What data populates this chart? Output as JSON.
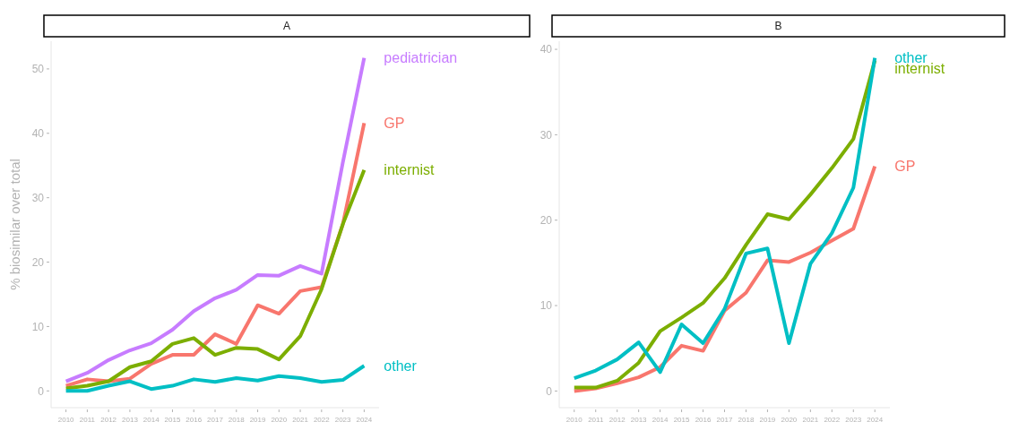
{
  "chart_data": [
    {
      "type": "line",
      "title": "A",
      "ylabel": "% biosimilar over total",
      "x": [
        2010,
        2011,
        2012,
        2013,
        2014,
        2015,
        2016,
        2017,
        2018,
        2019,
        2020,
        2021,
        2022,
        2023,
        2024
      ],
      "xlim": [
        2009.3,
        2024.7
      ],
      "xticks": [
        2010,
        2011,
        2012,
        2013,
        2014,
        2015,
        2016,
        2017,
        2018,
        2019,
        2020,
        2021,
        2022,
        2023,
        2024
      ],
      "ylim": [
        -2.6,
        54.3
      ],
      "yticks": [
        0,
        10,
        20,
        30,
        40,
        50
      ],
      "grid": false,
      "legend": false,
      "series": [
        {
          "name": "pediatrician",
          "color": "#c77cff",
          "values": [
            1.5,
            2.8,
            4.8,
            6.3,
            7.4,
            9.5,
            12.4,
            14.4,
            15.7,
            18.0,
            17.9,
            19.4,
            18.2,
            35.5,
            51.7
          ]
        },
        {
          "name": "GP",
          "color": "#f8766d",
          "values": [
            0.8,
            1.8,
            1.5,
            1.9,
            4.2,
            5.6,
            5.6,
            8.8,
            7.3,
            13.3,
            12.0,
            15.5,
            16.1,
            25.9,
            41.6
          ]
        },
        {
          "name": "internist",
          "color": "#7cae00",
          "values": [
            0.4,
            0.8,
            1.5,
            3.7,
            4.6,
            7.3,
            8.2,
            5.6,
            6.7,
            6.5,
            4.9,
            8.5,
            15.8,
            25.9,
            34.3
          ]
        },
        {
          "name": "other",
          "color": "#00bfc4",
          "values": [
            0.0,
            0.0,
            0.8,
            1.5,
            0.3,
            0.8,
            1.8,
            1.4,
            2.0,
            1.6,
            2.3,
            2.0,
            1.4,
            1.7,
            3.9
          ]
        }
      ]
    },
    {
      "type": "line",
      "title": "B",
      "x": [
        2010,
        2011,
        2012,
        2013,
        2014,
        2015,
        2016,
        2017,
        2018,
        2019,
        2020,
        2021,
        2022,
        2023,
        2024
      ],
      "xlim": [
        2009.3,
        2024.7
      ],
      "xticks": [
        2010,
        2011,
        2012,
        2013,
        2014,
        2015,
        2016,
        2017,
        2018,
        2019,
        2020,
        2021,
        2022,
        2023,
        2024
      ],
      "ylim": [
        -1.95,
        40.95
      ],
      "yticks": [
        0,
        10,
        20,
        30,
        40
      ],
      "grid": false,
      "legend": false,
      "series": [
        {
          "name": "GP",
          "color": "#f8766d",
          "values": [
            0.0,
            0.3,
            0.9,
            1.6,
            2.8,
            5.3,
            4.7,
            9.4,
            11.5,
            15.3,
            15.1,
            16.2,
            17.6,
            19.0,
            26.3
          ]
        },
        {
          "name": "internist",
          "color": "#7cae00",
          "values": [
            0.4,
            0.4,
            1.2,
            3.3,
            7.0,
            8.6,
            10.3,
            13.2,
            17.1,
            20.7,
            20.1,
            23.0,
            26.1,
            29.5,
            38.7
          ]
        },
        {
          "name": "other",
          "color": "#00bfc4",
          "values": [
            1.5,
            2.4,
            3.7,
            5.7,
            2.2,
            7.8,
            5.6,
            9.6,
            16.1,
            16.7,
            5.6,
            14.9,
            18.5,
            23.8,
            39.0
          ]
        }
      ]
    }
  ]
}
